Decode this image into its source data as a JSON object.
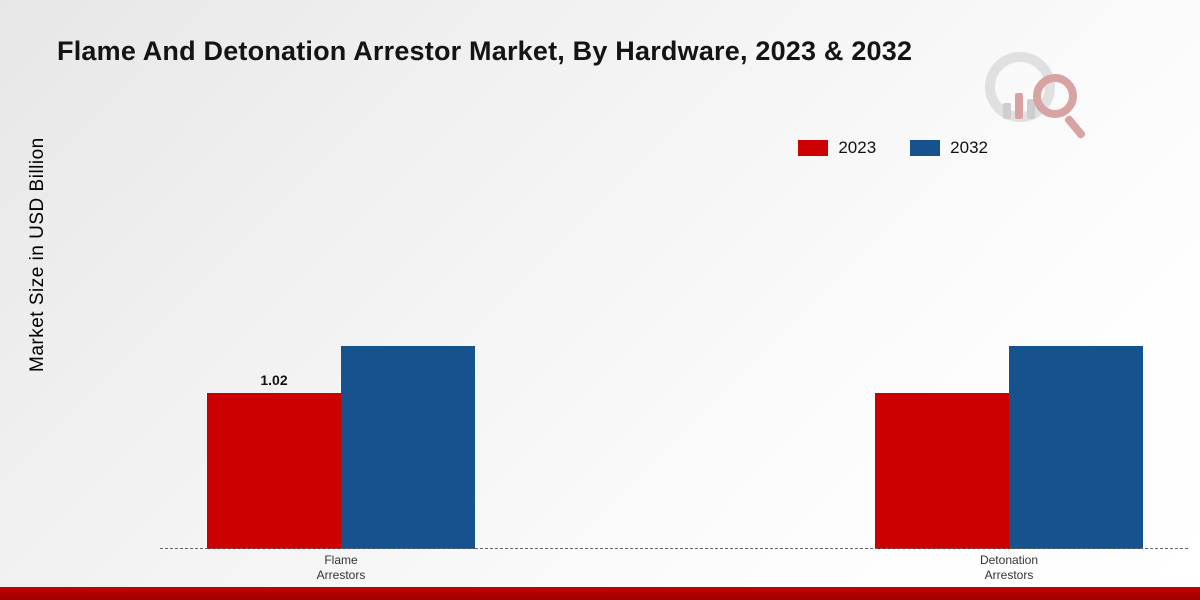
{
  "title": "Flame And Detonation Arrestor Market, By Hardware, 2023 & 2032",
  "ylabel": "Market Size in USD Billion",
  "legend": [
    {
      "label": "2023",
      "color": "#cc0000"
    },
    {
      "label": "2032",
      "color": "#16528e"
    }
  ],
  "colors": {
    "series_2023": "#cc0000",
    "series_2032": "#16528e",
    "footer_strip": "#c40000",
    "baseline": "#666666"
  },
  "chart_data": {
    "type": "bar",
    "categories": [
      "Flame Arrestors",
      "Detonation Arrestors"
    ],
    "category_lines": [
      [
        "Flame",
        "Arrestors"
      ],
      [
        "Detonation",
        "Arrestors"
      ]
    ],
    "series": [
      {
        "name": "2023",
        "color": "#cc0000",
        "values": [
          1.02,
          1.02
        ],
        "labels": [
          "1.02",
          ""
        ]
      },
      {
        "name": "2032",
        "color": "#16528e",
        "values": [
          1.33,
          1.33
        ],
        "labels": [
          "",
          ""
        ]
      }
    ],
    "ylabel": "Market Size in USD Billion",
    "ylim": [
      0,
      1.5
    ],
    "grid": false,
    "baseline_dashed": true,
    "legend_position": "top-right"
  }
}
